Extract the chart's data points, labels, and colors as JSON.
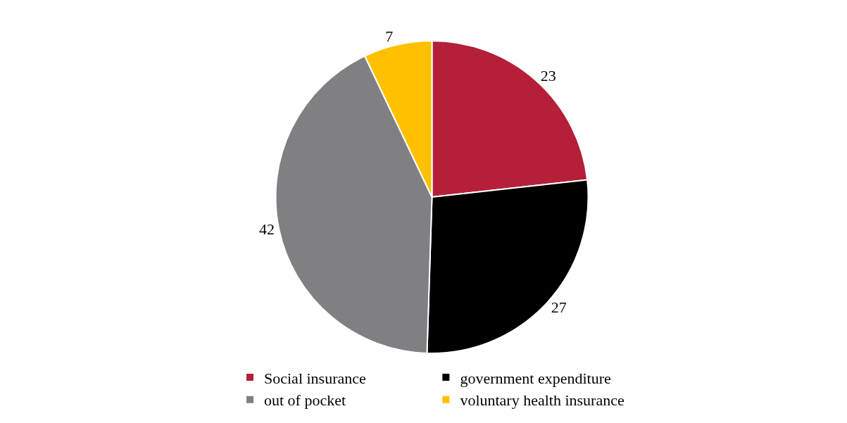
{
  "chart_data": {
    "type": "pie",
    "categories": [
      "Social insurance",
      "government expenditure",
      "out of pocket",
      "voluntary health insurance"
    ],
    "values": [
      23,
      27,
      42,
      7
    ],
    "colors": [
      "#b51f38",
      "#000000",
      "#808084",
      "#ffc000"
    ],
    "data_labels": true,
    "legend": "bottom"
  }
}
